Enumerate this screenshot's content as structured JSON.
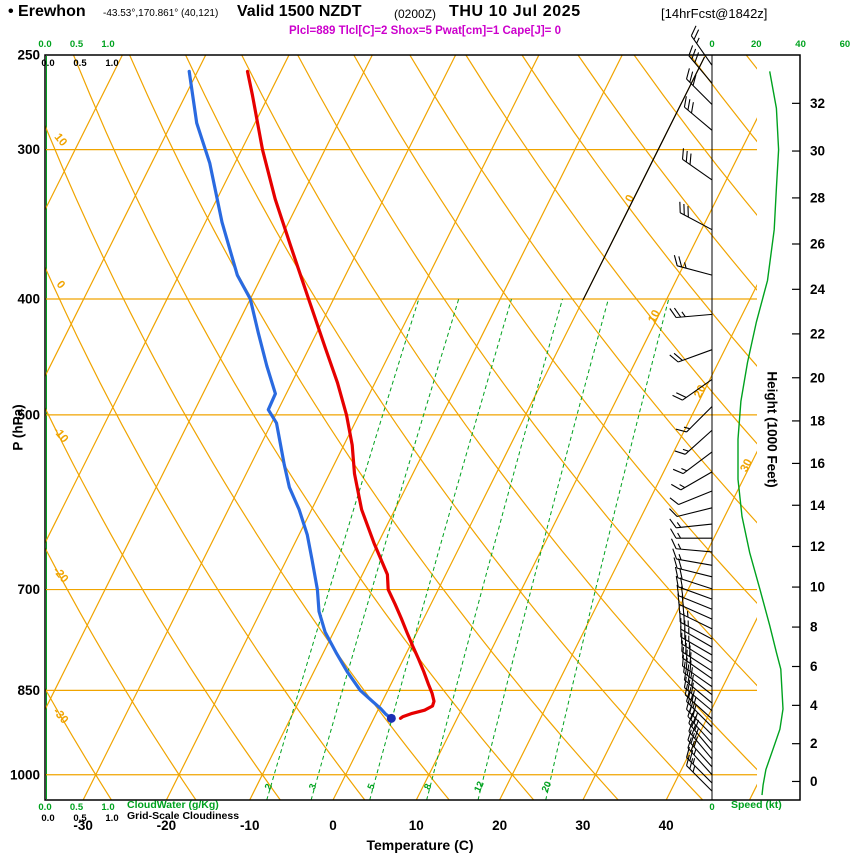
{
  "header": {
    "station": "• Erewhon",
    "coords": "-43.53°,170.861° (40,121)",
    "valid": "Valid 1500 NZDT",
    "valid_zulu": "(0200Z)",
    "valid_date": "THU 10 Jul 2025",
    "forecast_tag": "[14hrFcst@1842z]",
    "params_line": "Plcl=889 Tlcl[C]=2 Shox=5 Pwat[cm]=1 Cape[J]= 0"
  },
  "axes": {
    "pressure_title": "P (hPa)",
    "temperature_title": "Temperature (C)",
    "height_title": "Height (1000 Feet)",
    "speed_title": "Speed (kt)",
    "cloudwater_title": "CloudWater (g/Kg)",
    "gridscale_title": "Grid-Scale Cloudiness",
    "cloud_scale_labels": [
      "0.0",
      "0.5",
      "1.0"
    ],
    "speed_scale_labels": [
      "0",
      "20",
      "40",
      "60"
    ],
    "pressure_ticks": [
      250,
      300,
      400,
      500,
      700,
      850,
      1000
    ],
    "temperature_ticks": [
      -30,
      -20,
      -10,
      0,
      10,
      20,
      30,
      40
    ],
    "height_ticks": [
      0,
      2,
      4,
      6,
      8,
      10,
      12,
      14,
      16,
      18,
      20,
      22,
      24,
      26,
      28,
      30,
      32
    ]
  },
  "colors": {
    "grid_orange": "#f0a400",
    "green": "#00a21f",
    "red": "#e60000",
    "blue": "#2a6ae0",
    "dot_blue": "#1b2fb4",
    "magenta": "#cc00cc",
    "black": "#000000"
  },
  "chart_data": {
    "type": "line",
    "subtype": "skew-t-log-p-sounding",
    "title": "Erewhon forecast sounding valid 1500 NZDT THU 10 Jul 2025",
    "pressure_range_hpa": [
      250,
      1050
    ],
    "pressure_lines": [
      300,
      400,
      500,
      700,
      850,
      1000
    ],
    "isotherms_c": {
      "start": -120,
      "end": 50,
      "step": 10
    },
    "isotherm_labels": [
      [
        0,
        200
      ],
      [
        10,
        318
      ],
      [
        20,
        393
      ],
      [
        30,
        467
      ]
    ],
    "dry_adiabats_c": {
      "start": -40,
      "end": 150,
      "step": 10
    },
    "adiabat_labels": [
      [
        10,
        142
      ],
      [
        0,
        287
      ],
      [
        -10,
        437
      ],
      [
        -20,
        577
      ],
      [
        -30,
        718
      ]
    ],
    "mixing_ratio_g_kg": [
      2,
      3,
      5,
      8,
      12,
      20
    ],
    "temperature_profile": {
      "color": "#e60000",
      "points": [
        [
          258,
          -54
        ],
        [
          270,
          -52
        ],
        [
          300,
          -47.5
        ],
        [
          330,
          -43
        ],
        [
          360,
          -38.5
        ],
        [
          400,
          -33
        ],
        [
          440,
          -28
        ],
        [
          470,
          -24.5
        ],
        [
          500,
          -21.5
        ],
        [
          530,
          -19
        ],
        [
          560,
          -17
        ],
        [
          600,
          -14
        ],
        [
          640,
          -10.5
        ],
        [
          680,
          -7
        ],
        [
          700,
          -6
        ],
        [
          720,
          -4.3
        ],
        [
          740,
          -2.7
        ],
        [
          760,
          -1.2
        ],
        [
          780,
          0.3
        ],
        [
          800,
          1.8
        ],
        [
          820,
          3.2
        ],
        [
          840,
          4.5
        ],
        [
          855,
          5.5
        ],
        [
          868,
          6.2
        ],
        [
          876,
          6.3
        ],
        [
          883,
          5.6
        ],
        [
          889,
          4.2
        ],
        [
          894,
          3.4
        ],
        [
          897,
          3.2
        ]
      ]
    },
    "dewpoint_profile": {
      "color": "#2a6ae0",
      "surface_dot": [
        897,
        2.1
      ],
      "points": [
        [
          258,
          -61
        ],
        [
          285,
          -57
        ],
        [
          308,
          -53
        ],
        [
          345,
          -48
        ],
        [
          382,
          -43
        ],
        [
          400,
          -40
        ],
        [
          427,
          -37
        ],
        [
          455,
          -34
        ],
        [
          480,
          -31.3
        ],
        [
          495,
          -31.2
        ],
        [
          508,
          -29.4
        ],
        [
          525,
          -28
        ],
        [
          550,
          -26
        ],
        [
          575,
          -24
        ],
        [
          600,
          -21.5
        ],
        [
          630,
          -19
        ],
        [
          660,
          -17
        ],
        [
          700,
          -14.5
        ],
        [
          730,
          -13
        ],
        [
          760,
          -11
        ],
        [
          790,
          -8.5
        ],
        [
          820,
          -6
        ],
        [
          850,
          -3.3
        ],
        [
          868,
          -1.2
        ],
        [
          880,
          0.2
        ],
        [
          890,
          1.2
        ],
        [
          897,
          2.1
        ]
      ]
    },
    "speed_profile_kt": {
      "color": "#00a21f",
      "points": [
        [
          258,
          26
        ],
        [
          277,
          29
        ],
        [
          300,
          30
        ],
        [
          323,
          29
        ],
        [
          350,
          28
        ],
        [
          386,
          25
        ],
        [
          418,
          20
        ],
        [
          452,
          16
        ],
        [
          487,
          13
        ],
        [
          524,
          11.7
        ],
        [
          566,
          11.7
        ],
        [
          608,
          13.5
        ],
        [
          652,
          17
        ],
        [
          700,
          21.6
        ],
        [
          750,
          26
        ],
        [
          790,
          29
        ],
        [
          816,
          31
        ],
        [
          848,
          31.5
        ],
        [
          881,
          32
        ],
        [
          916,
          30.6
        ],
        [
          952,
          27.5
        ],
        [
          990,
          24.3
        ],
        [
          1020,
          23
        ],
        [
          1040,
          22.5
        ]
      ]
    },
    "wind_barbs": [
      [
        1032,
        315,
        25
      ],
      [
        1016,
        315,
        25
      ],
      [
        1000,
        318,
        25
      ],
      [
        985,
        318,
        28
      ],
      [
        970,
        320,
        28
      ],
      [
        955,
        320,
        30
      ],
      [
        941,
        318,
        30
      ],
      [
        926,
        315,
        30
      ],
      [
        912,
        315,
        32
      ],
      [
        898,
        312,
        32
      ],
      [
        884,
        310,
        32
      ],
      [
        871,
        310,
        30
      ],
      [
        857,
        308,
        30
      ],
      [
        844,
        305,
        30
      ],
      [
        831,
        305,
        28
      ],
      [
        819,
        303,
        28
      ],
      [
        806,
        302,
        27
      ],
      [
        794,
        300,
        26
      ],
      [
        782,
        300,
        25
      ],
      [
        770,
        298,
        24
      ],
      [
        755,
        296,
        23
      ],
      [
        741,
        294,
        22
      ],
      [
        727,
        292,
        22
      ],
      [
        713,
        290,
        21
      ],
      [
        699,
        288,
        20
      ],
      [
        683,
        284,
        18
      ],
      [
        668,
        280,
        17
      ],
      [
        651,
        275,
        15
      ],
      [
        634,
        270,
        14
      ],
      [
        617,
        264,
        13
      ],
      [
        598,
        256,
        12
      ],
      [
        579,
        248,
        12
      ],
      [
        558,
        240,
        13
      ],
      [
        537,
        233,
        14
      ],
      [
        515,
        228,
        15
      ],
      [
        492,
        225,
        16
      ],
      [
        467,
        235,
        18
      ],
      [
        441,
        250,
        21
      ],
      [
        412,
        265,
        24
      ],
      [
        382,
        285,
        27
      ],
      [
        350,
        298,
        29
      ],
      [
        318,
        305,
        30
      ],
      [
        289,
        310,
        30
      ],
      [
        275,
        315,
        29
      ],
      [
        264,
        320,
        28
      ],
      [
        255,
        325,
        27
      ]
    ],
    "freezing_isotherm_highlight_c": 0
  }
}
